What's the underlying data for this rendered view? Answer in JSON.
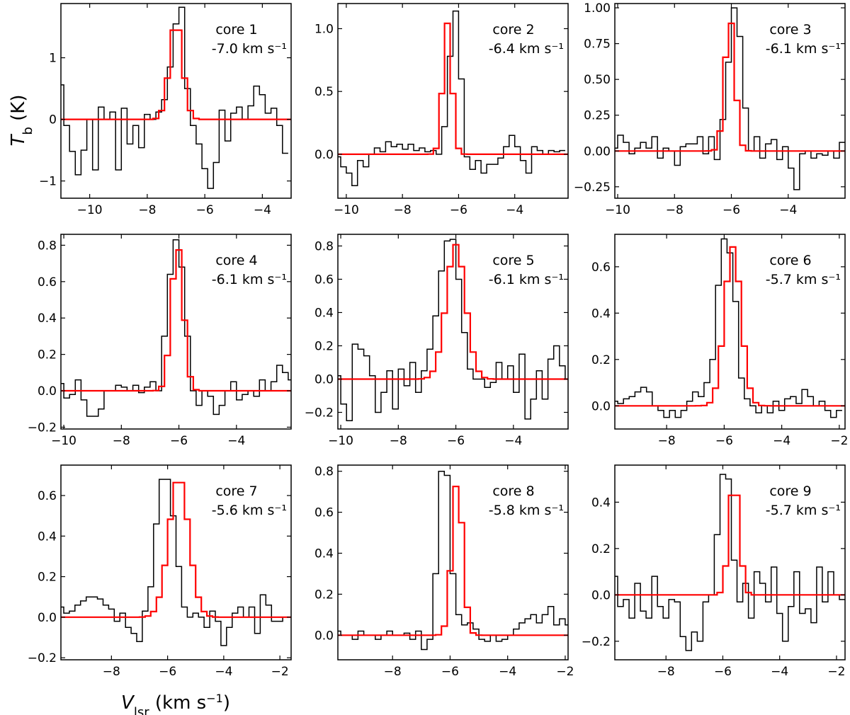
{
  "figure": {
    "ylabel_main": "T",
    "ylabel_sub": "b",
    "ylabel_unit": " (K)",
    "xlabel_main": "V",
    "xlabel_sub": "lsr",
    "xlabel_unit_pre": " (km s",
    "xlabel_unit_exp": "−1",
    "xlabel_unit_post": ")"
  },
  "colors": {
    "observed": "#000000",
    "fit": "#ff0000"
  },
  "chart_data": [
    {
      "type": "line",
      "name": "core 1",
      "velocity": "-7.0 km s⁻¹",
      "xlim": [
        -11,
        -3
      ],
      "ylim": [
        -1.28,
        1.88
      ],
      "xticks": [
        -10,
        -8,
        -6,
        -4
      ],
      "xtick_labels": [
        "−10",
        "−8",
        "−6",
        "−4"
      ],
      "yticks": [
        -1,
        0,
        1
      ],
      "ytick_labels": [
        "−1",
        "0",
        "1"
      ],
      "fit": {
        "center": -7.0,
        "sigma": 0.22,
        "amp": 1.65,
        "bin": 0.2
      },
      "observed": {
        "x0": -11.0,
        "step": 0.2,
        "y": [
          0.56,
          -0.1,
          -0.52,
          -0.9,
          -0.5,
          0.0,
          -0.82,
          0.2,
          0.0,
          0.12,
          -0.82,
          0.18,
          -0.4,
          -0.1,
          -0.46,
          0.08,
          0.0,
          0.12,
          0.32,
          0.85,
          1.55,
          1.82,
          0.5,
          -0.1,
          -0.4,
          -0.8,
          -1.12,
          -0.7,
          0.15,
          -0.35,
          0.1,
          0.2,
          0.0,
          0.22,
          0.54,
          0.4,
          0.1,
          0.18,
          -0.1,
          -0.55
        ]
      }
    },
    {
      "type": "line",
      "name": "core 2",
      "velocity": "-6.4 km s⁻¹",
      "xlim": [
        -10.3,
        -2.1
      ],
      "ylim": [
        -0.35,
        1.2
      ],
      "xticks": [
        -10,
        -8,
        -6,
        -4
      ],
      "xtick_labels": [
        "−10",
        "−8",
        "−6",
        "−4"
      ],
      "yticks": [
        0,
        0.5,
        1.0
      ],
      "ytick_labels": [
        "0.0",
        "0.5",
        "1.0"
      ],
      "fit": {
        "center": -6.4,
        "sigma": 0.15,
        "amp": 1.12,
        "bin": 0.2
      },
      "observed": {
        "x0": -10.3,
        "step": 0.2,
        "y": [
          -0.02,
          -0.1,
          -0.15,
          -0.25,
          -0.05,
          -0.1,
          0.0,
          0.05,
          0.02,
          0.1,
          0.06,
          0.08,
          0.04,
          0.08,
          0.03,
          0.05,
          0.02,
          0.03,
          0.0,
          0.22,
          0.78,
          1.14,
          0.6,
          -0.02,
          -0.12,
          -0.05,
          -0.15,
          -0.08,
          -0.08,
          -0.03,
          0.06,
          0.15,
          0.06,
          -0.05,
          -0.15,
          0.06,
          0.03,
          0.0,
          0.03,
          0.02,
          0.03
        ]
      }
    },
    {
      "type": "line",
      "name": "core 3",
      "velocity": "-6.1 km s⁻¹",
      "xlim": [
        -10.1,
        -2.0
      ],
      "ylim": [
        -0.33,
        1.03
      ],
      "xticks": [
        -10,
        -8,
        -6,
        -4
      ],
      "xtick_labels": [
        "−10",
        "−8",
        "−6",
        "−4"
      ],
      "yticks": [
        -0.25,
        0,
        0.25,
        0.5,
        0.75,
        1.0
      ],
      "ytick_labels": [
        "−0.25",
        "0.00",
        "0.25",
        "0.50",
        "0.75",
        "1.00"
      ],
      "fit": {
        "center": -6.05,
        "sigma": 0.17,
        "amp": 0.98,
        "bin": 0.2
      },
      "observed": {
        "x0": -10.1,
        "step": 0.2,
        "y": [
          0.02,
          0.11,
          0.06,
          -0.02,
          0.02,
          0.06,
          0.02,
          0.1,
          -0.05,
          0.02,
          0.0,
          -0.1,
          0.03,
          0.05,
          0.05,
          0.1,
          -0.02,
          0.1,
          -0.06,
          0.22,
          0.62,
          1.0,
          0.8,
          0.3,
          0.0,
          0.1,
          -0.05,
          0.05,
          0.08,
          -0.06,
          0.03,
          -0.12,
          -0.27,
          -0.02,
          0.0,
          -0.05,
          -0.02,
          -0.03,
          0.0,
          -0.05,
          0.06
        ]
      }
    },
    {
      "type": "line",
      "name": "core 4",
      "velocity": "-6.1 km s⁻¹",
      "xlim": [
        -10.1,
        -2.1
      ],
      "ylim": [
        -0.21,
        0.86
      ],
      "xticks": [
        -10,
        -8,
        -6,
        -4
      ],
      "xtick_labels": [
        "−10",
        "−8",
        "−6",
        "−4"
      ],
      "yticks": [
        -0.2,
        0,
        0.2,
        0.4,
        0.6,
        0.8
      ],
      "ytick_labels": [
        "−0.2",
        "0.0",
        "0.2",
        "0.4",
        "0.6",
        "0.8"
      ],
      "fit": {
        "center": -6.05,
        "sigma": 0.2,
        "amp": 0.83,
        "bin": 0.2
      },
      "observed": {
        "x0": -10.1,
        "step": 0.2,
        "y": [
          0.04,
          -0.04,
          -0.02,
          0.06,
          -0.05,
          -0.14,
          -0.14,
          -0.1,
          0.0,
          0.0,
          0.03,
          0.02,
          0.0,
          0.03,
          -0.01,
          0.02,
          0.05,
          0.0,
          0.3,
          0.64,
          0.83,
          0.68,
          0.3,
          0.0,
          -0.08,
          0.0,
          -0.03,
          -0.13,
          -0.08,
          0.0,
          0.05,
          -0.05,
          -0.02,
          0.0,
          -0.03,
          0.06,
          0.0,
          0.05,
          0.14,
          0.1,
          0.06
        ]
      }
    },
    {
      "type": "line",
      "name": "core 5",
      "velocity": "-6.1 km s⁻¹",
      "xlim": [
        -10.1,
        -2.1
      ],
      "ylim": [
        -0.3,
        0.87
      ],
      "xticks": [
        -10,
        -8,
        -6,
        -4
      ],
      "xtick_labels": [
        "−10",
        "−8",
        "−6",
        "−4"
      ],
      "yticks": [
        -0.2,
        0,
        0.2,
        0.4,
        0.6,
        0.8
      ],
      "ytick_labels": [
        "−0.2",
        "0.0",
        "0.2",
        "0.4",
        "0.6",
        "0.8"
      ],
      "fit": {
        "center": -6.0,
        "sigma": 0.33,
        "amp": 0.82,
        "bin": 0.2
      },
      "observed": {
        "x0": -10.1,
        "step": 0.2,
        "y": [
          0.02,
          -0.15,
          -0.25,
          0.21,
          0.18,
          0.14,
          0.02,
          -0.2,
          -0.08,
          0.05,
          -0.18,
          0.06,
          -0.04,
          0.1,
          -0.08,
          0.05,
          0.18,
          0.38,
          0.65,
          0.83,
          0.84,
          0.6,
          0.28,
          0.06,
          0.0,
          0.0,
          -0.05,
          -0.02,
          0.1,
          0.0,
          0.08,
          -0.08,
          0.15,
          -0.24,
          -0.12,
          0.05,
          -0.12,
          0.12,
          0.2,
          0.08,
          0.0
        ]
      }
    },
    {
      "type": "line",
      "name": "core 6",
      "velocity": "-5.7 km s⁻¹",
      "xlim": [
        -9.8,
        -1.8
      ],
      "ylim": [
        -0.1,
        0.74
      ],
      "xticks": [
        -8,
        -6,
        -4,
        -2
      ],
      "xtick_labels": [
        "−8",
        "−6",
        "−4",
        "−2"
      ],
      "yticks": [
        0,
        0.2,
        0.4,
        0.6
      ],
      "ytick_labels": [
        "0.0",
        "0.2",
        "0.4",
        "0.6"
      ],
      "fit": {
        "center": -5.7,
        "sigma": 0.28,
        "amp": 0.7,
        "bin": 0.2
      },
      "observed": {
        "x0": -9.8,
        "step": 0.2,
        "y": [
          0.02,
          0.01,
          0.03,
          0.04,
          0.06,
          0.08,
          0.06,
          0.0,
          -0.02,
          -0.05,
          -0.02,
          -0.05,
          -0.02,
          0.02,
          0.06,
          0.04,
          0.1,
          0.2,
          0.52,
          0.72,
          0.66,
          0.45,
          0.12,
          0.03,
          0.0,
          -0.03,
          0.0,
          -0.03,
          0.02,
          -0.02,
          0.03,
          0.04,
          0.01,
          0.07,
          0.04,
          0.0,
          0.02,
          -0.02,
          -0.05,
          -0.02
        ]
      }
    },
    {
      "type": "line",
      "name": "core 7",
      "velocity": "-5.6 km s⁻¹",
      "xlim": [
        -9.8,
        -1.6
      ],
      "ylim": [
        -0.21,
        0.75
      ],
      "xticks": [
        -8,
        -6,
        -4,
        -2
      ],
      "xtick_labels": [
        "−8",
        "−6",
        "−4",
        "−2"
      ],
      "yticks": [
        -0.2,
        0,
        0.2,
        0.4,
        0.6
      ],
      "ytick_labels": [
        "−0.2",
        "0.0",
        "0.2",
        "0.4",
        "0.6"
      ],
      "fit": {
        "center": -5.6,
        "sigma": 0.35,
        "amp": 0.7,
        "bin": 0.2
      },
      "observed": {
        "x0": -9.8,
        "step": 0.2,
        "y": [
          0.05,
          0.02,
          0.03,
          0.06,
          0.08,
          0.1,
          0.1,
          0.09,
          0.06,
          0.04,
          -0.02,
          0.02,
          -0.05,
          -0.08,
          -0.12,
          0.03,
          0.15,
          0.46,
          0.68,
          0.68,
          0.5,
          0.25,
          0.05,
          0.0,
          0.02,
          0.0,
          -0.05,
          0.03,
          -0.02,
          -0.14,
          -0.05,
          0.02,
          0.05,
          0.0,
          0.05,
          -0.08,
          0.11,
          0.06,
          -0.02,
          -0.02,
          0.0
        ]
      }
    },
    {
      "type": "line",
      "name": "core 8",
      "velocity": "-5.8 km s⁻¹",
      "xlim": [
        -9.9,
        -1.9
      ],
      "ylim": [
        -0.12,
        0.83
      ],
      "xticks": [
        -8,
        -6,
        -4,
        -2
      ],
      "xtick_labels": [
        "−8",
        "−6",
        "−4",
        "−2"
      ],
      "yticks": [
        0,
        0.2,
        0.4,
        0.6,
        0.8
      ],
      "ytick_labels": [
        "0.0",
        "0.2",
        "0.4",
        "0.6",
        "0.8"
      ],
      "fit": {
        "center": -5.75,
        "sigma": 0.18,
        "amp": 0.79,
        "bin": 0.2
      },
      "observed": {
        "x0": -9.9,
        "step": 0.2,
        "y": [
          0.02,
          0.0,
          0.0,
          -0.02,
          0.02,
          0.0,
          0.0,
          -0.02,
          0.0,
          0.02,
          0.0,
          0.0,
          0.01,
          -0.02,
          0.02,
          -0.07,
          -0.02,
          0.3,
          0.8,
          0.78,
          0.3,
          0.1,
          0.05,
          0.06,
          0.03,
          -0.02,
          -0.03,
          0.0,
          -0.03,
          -0.02,
          0.0,
          0.03,
          0.06,
          0.08,
          0.1,
          0.06,
          0.1,
          0.14,
          0.05,
          0.08,
          0.05
        ]
      }
    },
    {
      "type": "line",
      "name": "core 9",
      "velocity": "-5.7 km s⁻¹",
      "xlim": [
        -9.8,
        -1.7
      ],
      "ylim": [
        -0.28,
        0.56
      ],
      "xticks": [
        -8,
        -6,
        -4,
        -2
      ],
      "xtick_labels": [
        "−8",
        "−6",
        "−4",
        "−2"
      ],
      "yticks": [
        -0.2,
        0,
        0.2,
        0.4
      ],
      "ytick_labels": [
        "−0.2",
        "0.0",
        "0.2",
        "0.4"
      ],
      "fit": {
        "center": -5.6,
        "sigma": 0.17,
        "amp": 0.53,
        "bin": 0.2
      },
      "observed": {
        "x0": -9.8,
        "step": 0.2,
        "y": [
          0.08,
          -0.05,
          -0.02,
          -0.1,
          0.05,
          -0.07,
          -0.1,
          0.08,
          -0.05,
          -0.1,
          -0.02,
          -0.03,
          -0.18,
          -0.24,
          -0.16,
          -0.2,
          -0.03,
          0.0,
          0.26,
          0.52,
          0.5,
          0.15,
          -0.03,
          0.05,
          -0.1,
          0.1,
          0.05,
          -0.03,
          0.12,
          -0.08,
          -0.2,
          -0.05,
          0.1,
          -0.08,
          -0.06,
          -0.12,
          0.12,
          -0.03,
          0.1,
          0.0,
          -0.02
        ]
      }
    }
  ]
}
